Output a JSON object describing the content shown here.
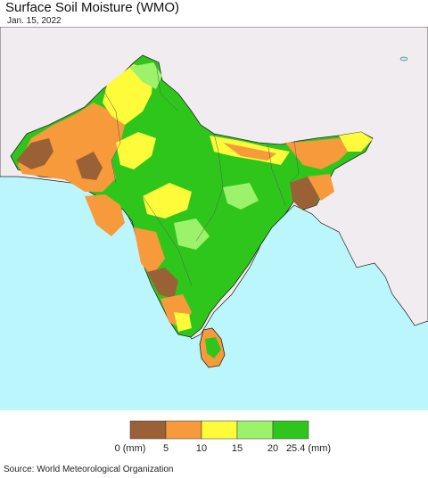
{
  "title": "Surface Soil Moisture (WMO)",
  "date": "Jan. 15, 2022",
  "source": "Source: World Meteorological Organization",
  "legend": {
    "colors": [
      "#9b6136",
      "#f79a3c",
      "#fdfb3a",
      "#9cf26a",
      "#2fc61c"
    ],
    "labels": [
      "0 (mm)",
      "5",
      "10",
      "15",
      "20",
      "25.4 (mm)"
    ]
  },
  "colors": {
    "ocean": "#baf6fb",
    "land_outside": "#f0ecf0",
    "border": "#222222"
  }
}
